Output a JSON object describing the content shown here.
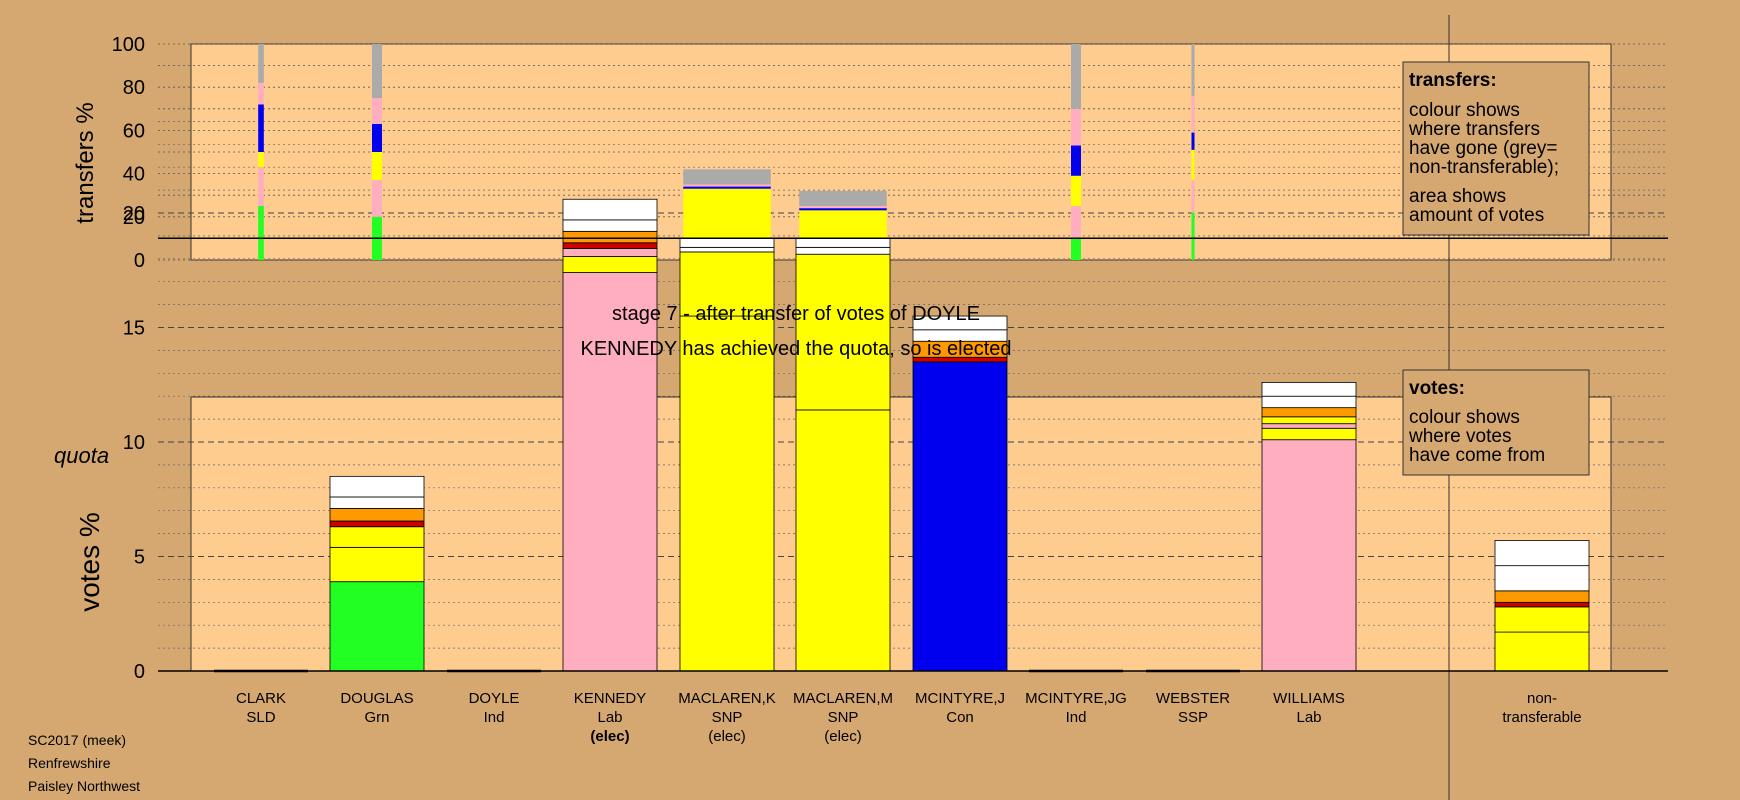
{
  "chart_data": {
    "type": "bar",
    "categories": [
      {
        "name": "CLARK",
        "party": "SLD",
        "status": ""
      },
      {
        "name": "DOUGLAS",
        "party": "Grn",
        "status": ""
      },
      {
        "name": "DOYLE",
        "party": "Ind",
        "status": ""
      },
      {
        "name": "KENNEDY",
        "party": "Lab",
        "status": "(elec)"
      },
      {
        "name": "MACLAREN,K",
        "party": "SNP",
        "status": "(elec)"
      },
      {
        "name": "MACLAREN,M",
        "party": "SNP",
        "status": "(elec)"
      },
      {
        "name": "MCINTYRE,J",
        "party": "Con",
        "status": ""
      },
      {
        "name": "MCINTYRE,JG",
        "party": "Ind",
        "status": ""
      },
      {
        "name": "WEBSTER",
        "party": "SSP",
        "status": ""
      },
      {
        "name": "WILLIAMS",
        "party": "Lab",
        "status": ""
      },
      {
        "name": "non-",
        "party": "transferable",
        "status": ""
      }
    ],
    "title": "stage 7 - after transfer of votes of DOYLE",
    "subtitle": "KENNEDY has achieved the quota, so is elected",
    "quota_label": "quota",
    "quota": 18.9,
    "colors": {
      "grn": "#22ff22",
      "lab": "#ffaec0",
      "snp": "#ffff00",
      "con": "#0000ee",
      "sld": "#ff9900",
      "ind": "#cc0000",
      "ssp": "#ff4400",
      "other": "#ffffff",
      "nt": "#aaaaaa"
    },
    "transfers": {
      "ylabel": "transfers %",
      "ylim": [
        0,
        100
      ],
      "yticks": [
        0,
        20,
        40,
        60,
        80,
        100
      ],
      "bars": [
        {
          "index": 0,
          "width_share": 0.045,
          "segments": [
            {
              "c": "grn",
              "v": 25
            },
            {
              "c": "lab",
              "v": 18
            },
            {
              "c": "snp",
              "v": 7
            },
            {
              "c": "con",
              "v": 22
            },
            {
              "c": "lab",
              "v": 10
            },
            {
              "c": "nt",
              "v": 18
            }
          ]
        },
        {
          "index": 1,
          "width_share": 0.08,
          "segments": [
            {
              "c": "grn",
              "v": 20
            },
            {
              "c": "lab",
              "v": 17
            },
            {
              "c": "snp",
              "v": 13
            },
            {
              "c": "con",
              "v": 13
            },
            {
              "c": "lab",
              "v": 12
            },
            {
              "c": "nt",
              "v": 25
            }
          ]
        },
        {
          "index": 4,
          "width_share": 0.7,
          "segments": [
            {
              "c": "grn",
              "v": 6
            },
            {
              "c": "lab",
              "v": 2
            },
            {
              "c": "snp",
              "v": 25
            },
            {
              "c": "con",
              "v": 1
            },
            {
              "c": "lab",
              "v": 1
            },
            {
              "c": "nt",
              "v": 7
            }
          ]
        },
        {
          "index": 5,
          "width_share": 0.7,
          "segments": [
            {
              "c": "grn",
              "v": 6
            },
            {
              "c": "lab",
              "v": 2
            },
            {
              "c": "snp",
              "v": 15
            },
            {
              "c": "con",
              "v": 1
            },
            {
              "c": "lab",
              "v": 1
            },
            {
              "c": "nt",
              "v": 7
            }
          ]
        },
        {
          "index": 7,
          "width_share": 0.08,
          "segments": [
            {
              "c": "grn",
              "v": 10
            },
            {
              "c": "lab",
              "v": 15
            },
            {
              "c": "snp",
              "v": 14
            },
            {
              "c": "con",
              "v": 14
            },
            {
              "c": "lab",
              "v": 17
            },
            {
              "c": "nt",
              "v": 30
            }
          ]
        },
        {
          "index": 8,
          "width_share": 0.015,
          "segments": [
            {
              "c": "grn",
              "v": 22
            },
            {
              "c": "lab",
              "v": 15
            },
            {
              "c": "snp",
              "v": 14
            },
            {
              "c": "con",
              "v": 8
            },
            {
              "c": "lab",
              "v": 17
            },
            {
              "c": "nt",
              "v": 24
            }
          ]
        }
      ]
    },
    "votes": {
      "ylabel": "votes %",
      "ylim": [
        0,
        24
      ],
      "yticks": [
        0,
        5,
        10,
        15,
        20
      ],
      "bars": [
        {
          "index": 0,
          "segments": []
        },
        {
          "index": 1,
          "segments": [
            {
              "c": "grn",
              "v": 3.9
            },
            {
              "c": "snp",
              "v": 1.5
            },
            {
              "c": "snp",
              "v": 0.9
            },
            {
              "c": "ind",
              "v": 0.25
            },
            {
              "c": "sld",
              "v": 0.55
            },
            {
              "c": "other",
              "v": 0.5
            },
            {
              "c": "other",
              "v": 0.9
            }
          ]
        },
        {
          "index": 2,
          "segments": []
        },
        {
          "index": 3,
          "segments": [
            {
              "c": "lab",
              "v": 17.4
            },
            {
              "c": "snp",
              "v": 0.7
            },
            {
              "c": "lab",
              "v": 0.35
            },
            {
              "c": "ind",
              "v": 0.25
            },
            {
              "c": "sld",
              "v": 0.5
            },
            {
              "c": "other",
              "v": 0.5
            },
            {
              "c": "other",
              "v": 0.9
            }
          ]
        },
        {
          "index": 4,
          "segments": [
            {
              "c": "snp",
              "v": 15.5
            },
            {
              "c": "snp",
              "v": 2.8
            },
            {
              "c": "other",
              "v": 0.2
            },
            {
              "c": "other",
              "v": 0.4
            }
          ]
        },
        {
          "index": 5,
          "segments": [
            {
              "c": "snp",
              "v": 11.4
            },
            {
              "c": "snp",
              "v": 6.8
            },
            {
              "c": "other",
              "v": 0.3
            },
            {
              "c": "other",
              "v": 0.4
            }
          ]
        },
        {
          "index": 6,
          "segments": [
            {
              "c": "con",
              "v": 13.5
            },
            {
              "c": "ind",
              "v": 0.2
            },
            {
              "c": "sld",
              "v": 0.7
            },
            {
              "c": "other",
              "v": 0.5
            },
            {
              "c": "other",
              "v": 0.6
            }
          ]
        },
        {
          "index": 7,
          "segments": []
        },
        {
          "index": 8,
          "segments": []
        },
        {
          "index": 9,
          "segments": [
            {
              "c": "lab",
              "v": 10.1
            },
            {
              "c": "snp",
              "v": 0.5
            },
            {
              "c": "lab",
              "v": 0.2
            },
            {
              "c": "snp",
              "v": 0.3
            },
            {
              "c": "sld",
              "v": 0.4
            },
            {
              "c": "other",
              "v": 0.5
            },
            {
              "c": "other",
              "v": 0.6
            }
          ]
        },
        {
          "index": 10,
          "segments": [
            {
              "c": "snp",
              "v": 1.7
            },
            {
              "c": "snp",
              "v": 1.1
            },
            {
              "c": "ind",
              "v": 0.2
            },
            {
              "c": "sld",
              "v": 0.5
            },
            {
              "c": "other",
              "v": 1.1
            },
            {
              "c": "other",
              "v": 1.1
            }
          ]
        }
      ]
    },
    "legend_transfers": {
      "title": "transfers:",
      "lines_a": [
        "colour shows",
        "where transfers",
        "have gone (grey=",
        "non-transferable);"
      ],
      "lines_b": [
        "area shows",
        "amount of votes"
      ]
    },
    "legend_votes": {
      "title": "votes:",
      "lines": [
        "colour shows",
        "where votes",
        "have come from"
      ]
    }
  },
  "footer": [
    "SC2017 (meek)",
    "Renfrewshire",
    "Paisley Northwest"
  ]
}
